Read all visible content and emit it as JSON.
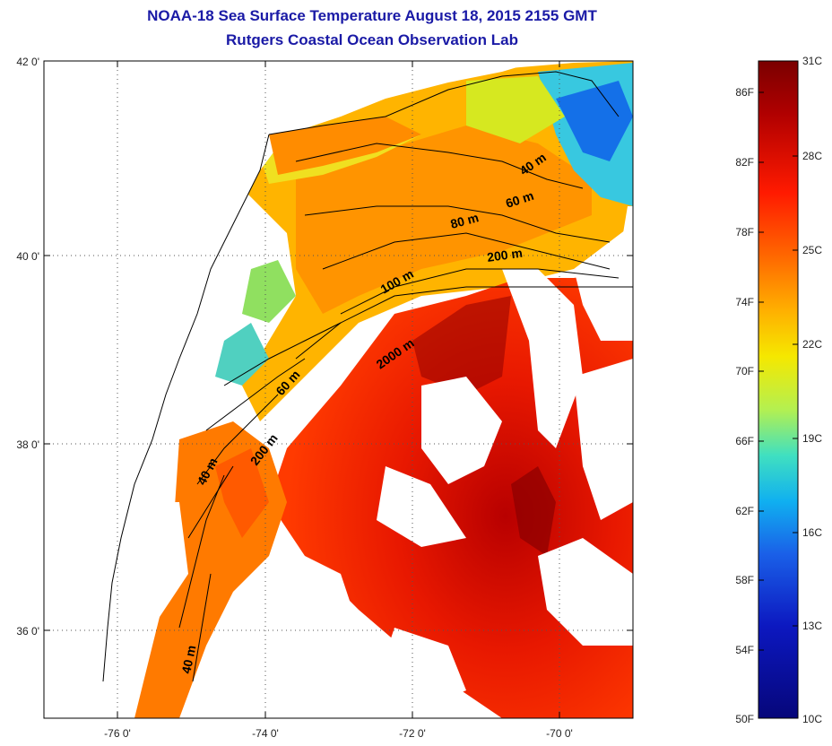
{
  "title_line1": "NOAA-18 Sea Surface Temperature August 18, 2015 2155 GMT",
  "title_line2": "Rutgers Coastal Ocean Observation Lab",
  "axes": {
    "lon_ticks": [
      "-76 0'",
      "-74 0'",
      "-72 0'",
      "-70 0'"
    ],
    "lat_ticks": [
      "42 0'",
      "40 0'",
      "38 0'",
      "36 0'"
    ]
  },
  "contour_labels": [
    "40 m",
    "60 m",
    "80 m",
    "200 m",
    "100 m",
    "2000 m",
    "60 m",
    "200 m",
    "40 m",
    "40 m"
  ],
  "colorbar": {
    "fahrenheit": [
      "86F",
      "82F",
      "78F",
      "74F",
      "70F",
      "66F",
      "62F",
      "58F",
      "54F",
      "50F"
    ],
    "celsius": [
      "31C",
      "28C",
      "25C",
      "22C",
      "19C",
      "16C",
      "13C",
      "10C"
    ],
    "colors": [
      "#7a0000",
      "#c80000",
      "#ff2a00",
      "#ff7a00",
      "#ffc200",
      "#f0f000",
      "#a8f05a",
      "#3ce0c8",
      "#10a8f0",
      "#1450e0",
      "#0a14b4",
      "#06067a"
    ]
  }
}
